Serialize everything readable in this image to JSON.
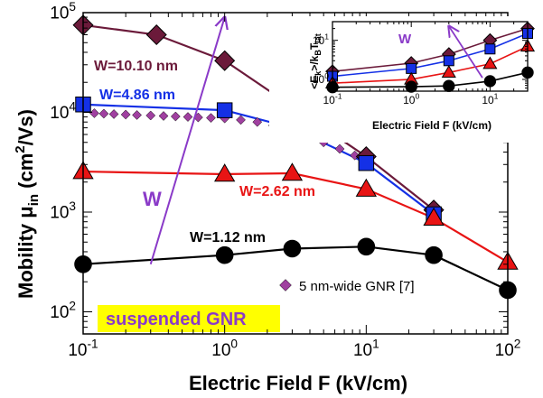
{
  "colors": {
    "w1010": "#6b1a3a",
    "w486": "#1430e6",
    "w262": "#e81414",
    "w112": "#000000",
    "ref": "#a040a0",
    "arrow": "#8a3ac8",
    "highlight": "#ffff00"
  },
  "chart_data": [
    {
      "type": "scatter",
      "scale": {
        "x": "log",
        "y": "log"
      },
      "xlabel": "Electric Field F (kV/cm)",
      "ylabel": "Mobility μin (cm2/Vs)",
      "ylabel_parts": {
        "main": "Mobility μ",
        "sub": "in",
        "unit_open": " (cm",
        "sup": "2",
        "unit_close": "/Vs)"
      },
      "xlim": [
        0.1,
        100
      ],
      "ylim": [
        60,
        100000
      ],
      "xticks": [
        {
          "value": 0.1,
          "base": "10",
          "exp": "-1"
        },
        {
          "value": 1,
          "base": "10",
          "exp": "0"
        },
        {
          "value": 10,
          "base": "10",
          "exp": "1"
        },
        {
          "value": 100,
          "base": "10",
          "exp": "2"
        }
      ],
      "yticks": [
        {
          "value": 100,
          "base": "10",
          "exp": "2"
        },
        {
          "value": 1000,
          "base": "10",
          "exp": "3"
        },
        {
          "value": 10000,
          "base": "10",
          "exp": "4"
        },
        {
          "value": 100000,
          "base": "10",
          "exp": "5"
        }
      ],
      "series": [
        {
          "name": "W=10.10 nm",
          "marker": "diamond",
          "colorKey": "w1010",
          "x": [
            0.1,
            0.33,
            1,
            10,
            30
          ],
          "y": [
            75000,
            60000,
            33000,
            3600,
            1050
          ]
        },
        {
          "name": "W=4.86 nm",
          "marker": "square",
          "colorKey": "w486",
          "x": [
            0.1,
            1,
            3,
            10,
            30
          ],
          "y": [
            12000,
            10500,
            7000,
            3100,
            950
          ]
        },
        {
          "name": "W=2.62 nm",
          "marker": "triangle",
          "colorKey": "w262",
          "x": [
            0.1,
            1,
            3,
            10,
            30,
            100
          ],
          "y": [
            2550,
            2400,
            2450,
            1700,
            870,
            315
          ]
        },
        {
          "name": "W=1.12 nm",
          "marker": "circle",
          "colorKey": "w112",
          "x": [
            0.1,
            1,
            3,
            10,
            30,
            100
          ],
          "y": [
            300,
            370,
            430,
            450,
            370,
            165
          ]
        }
      ],
      "reference": {
        "name": "5 nm-wide GNR [7]",
        "marker": "small-diamond",
        "colorKey": "ref",
        "x": [
          0.12,
          0.14,
          0.165,
          0.2,
          0.24,
          0.3,
          0.37,
          0.45,
          0.55,
          0.65,
          0.8,
          1.0,
          1.3,
          1.7,
          2.2,
          2.9,
          3.8,
          5.0,
          6.5,
          8.3,
          10
        ],
        "y": [
          9800,
          9700,
          9600,
          9500,
          9400,
          9300,
          9200,
          9100,
          9000,
          8900,
          8800,
          8700,
          8400,
          8000,
          7400,
          6700,
          5900,
          5000,
          4300,
          3700,
          3300
        ]
      },
      "annotations": {
        "trend_label": "W",
        "trend_arrow": {
          "from": [
            0.3,
            300
          ],
          "to": [
            1.0,
            90000
          ]
        },
        "highlight_label": "suspended GNR"
      }
    },
    {
      "type": "line",
      "scale": {
        "x": "log",
        "y": "log"
      },
      "xlabel": "Electric Field F (kV/cm)",
      "ylabel": "<Ek>/kBTlat",
      "ylabel_parts": {
        "a": "<E",
        "b": "k",
        "c": ">/k",
        "d": "B",
        "e": "T",
        "f": "lat"
      },
      "xlim": [
        0.1,
        30
      ],
      "ylim": [
        0.5,
        30
      ],
      "xticks": [
        {
          "value": 0.1,
          "base": "10",
          "exp": "-1"
        },
        {
          "value": 1,
          "base": "10",
          "exp": "0"
        },
        {
          "value": 10,
          "base": "10",
          "exp": "1"
        }
      ],
      "yticks": [
        {
          "value": 1,
          "base": "10",
          "exp": "0"
        },
        {
          "value": 10,
          "base": "10",
          "exp": "1"
        }
      ],
      "series": [
        {
          "marker": "diamond",
          "colorKey": "w1010",
          "x": [
            0.1,
            1,
            3,
            10,
            30
          ],
          "y": [
            1.6,
            2.6,
            4.4,
            10,
            20
          ]
        },
        {
          "marker": "square",
          "colorKey": "w486",
          "x": [
            0.1,
            1,
            3,
            10,
            30
          ],
          "y": [
            1.2,
            1.9,
            3.0,
            6.0,
            15
          ]
        },
        {
          "marker": "triangle",
          "colorKey": "w262",
          "x": [
            0.1,
            1,
            3,
            10,
            30
          ],
          "y": [
            0.8,
            1.0,
            1.5,
            2.5,
            7.0
          ]
        },
        {
          "marker": "circle",
          "colorKey": "w112",
          "x": [
            0.1,
            1,
            3,
            10,
            30
          ],
          "y": [
            0.63,
            0.65,
            0.68,
            0.9,
            1.5
          ]
        }
      ],
      "annotations": {
        "trend_label": "W",
        "trend_arrow": {
          "from": [
            8,
            1.1
          ],
          "to": [
            3,
            23
          ]
        }
      }
    }
  ]
}
